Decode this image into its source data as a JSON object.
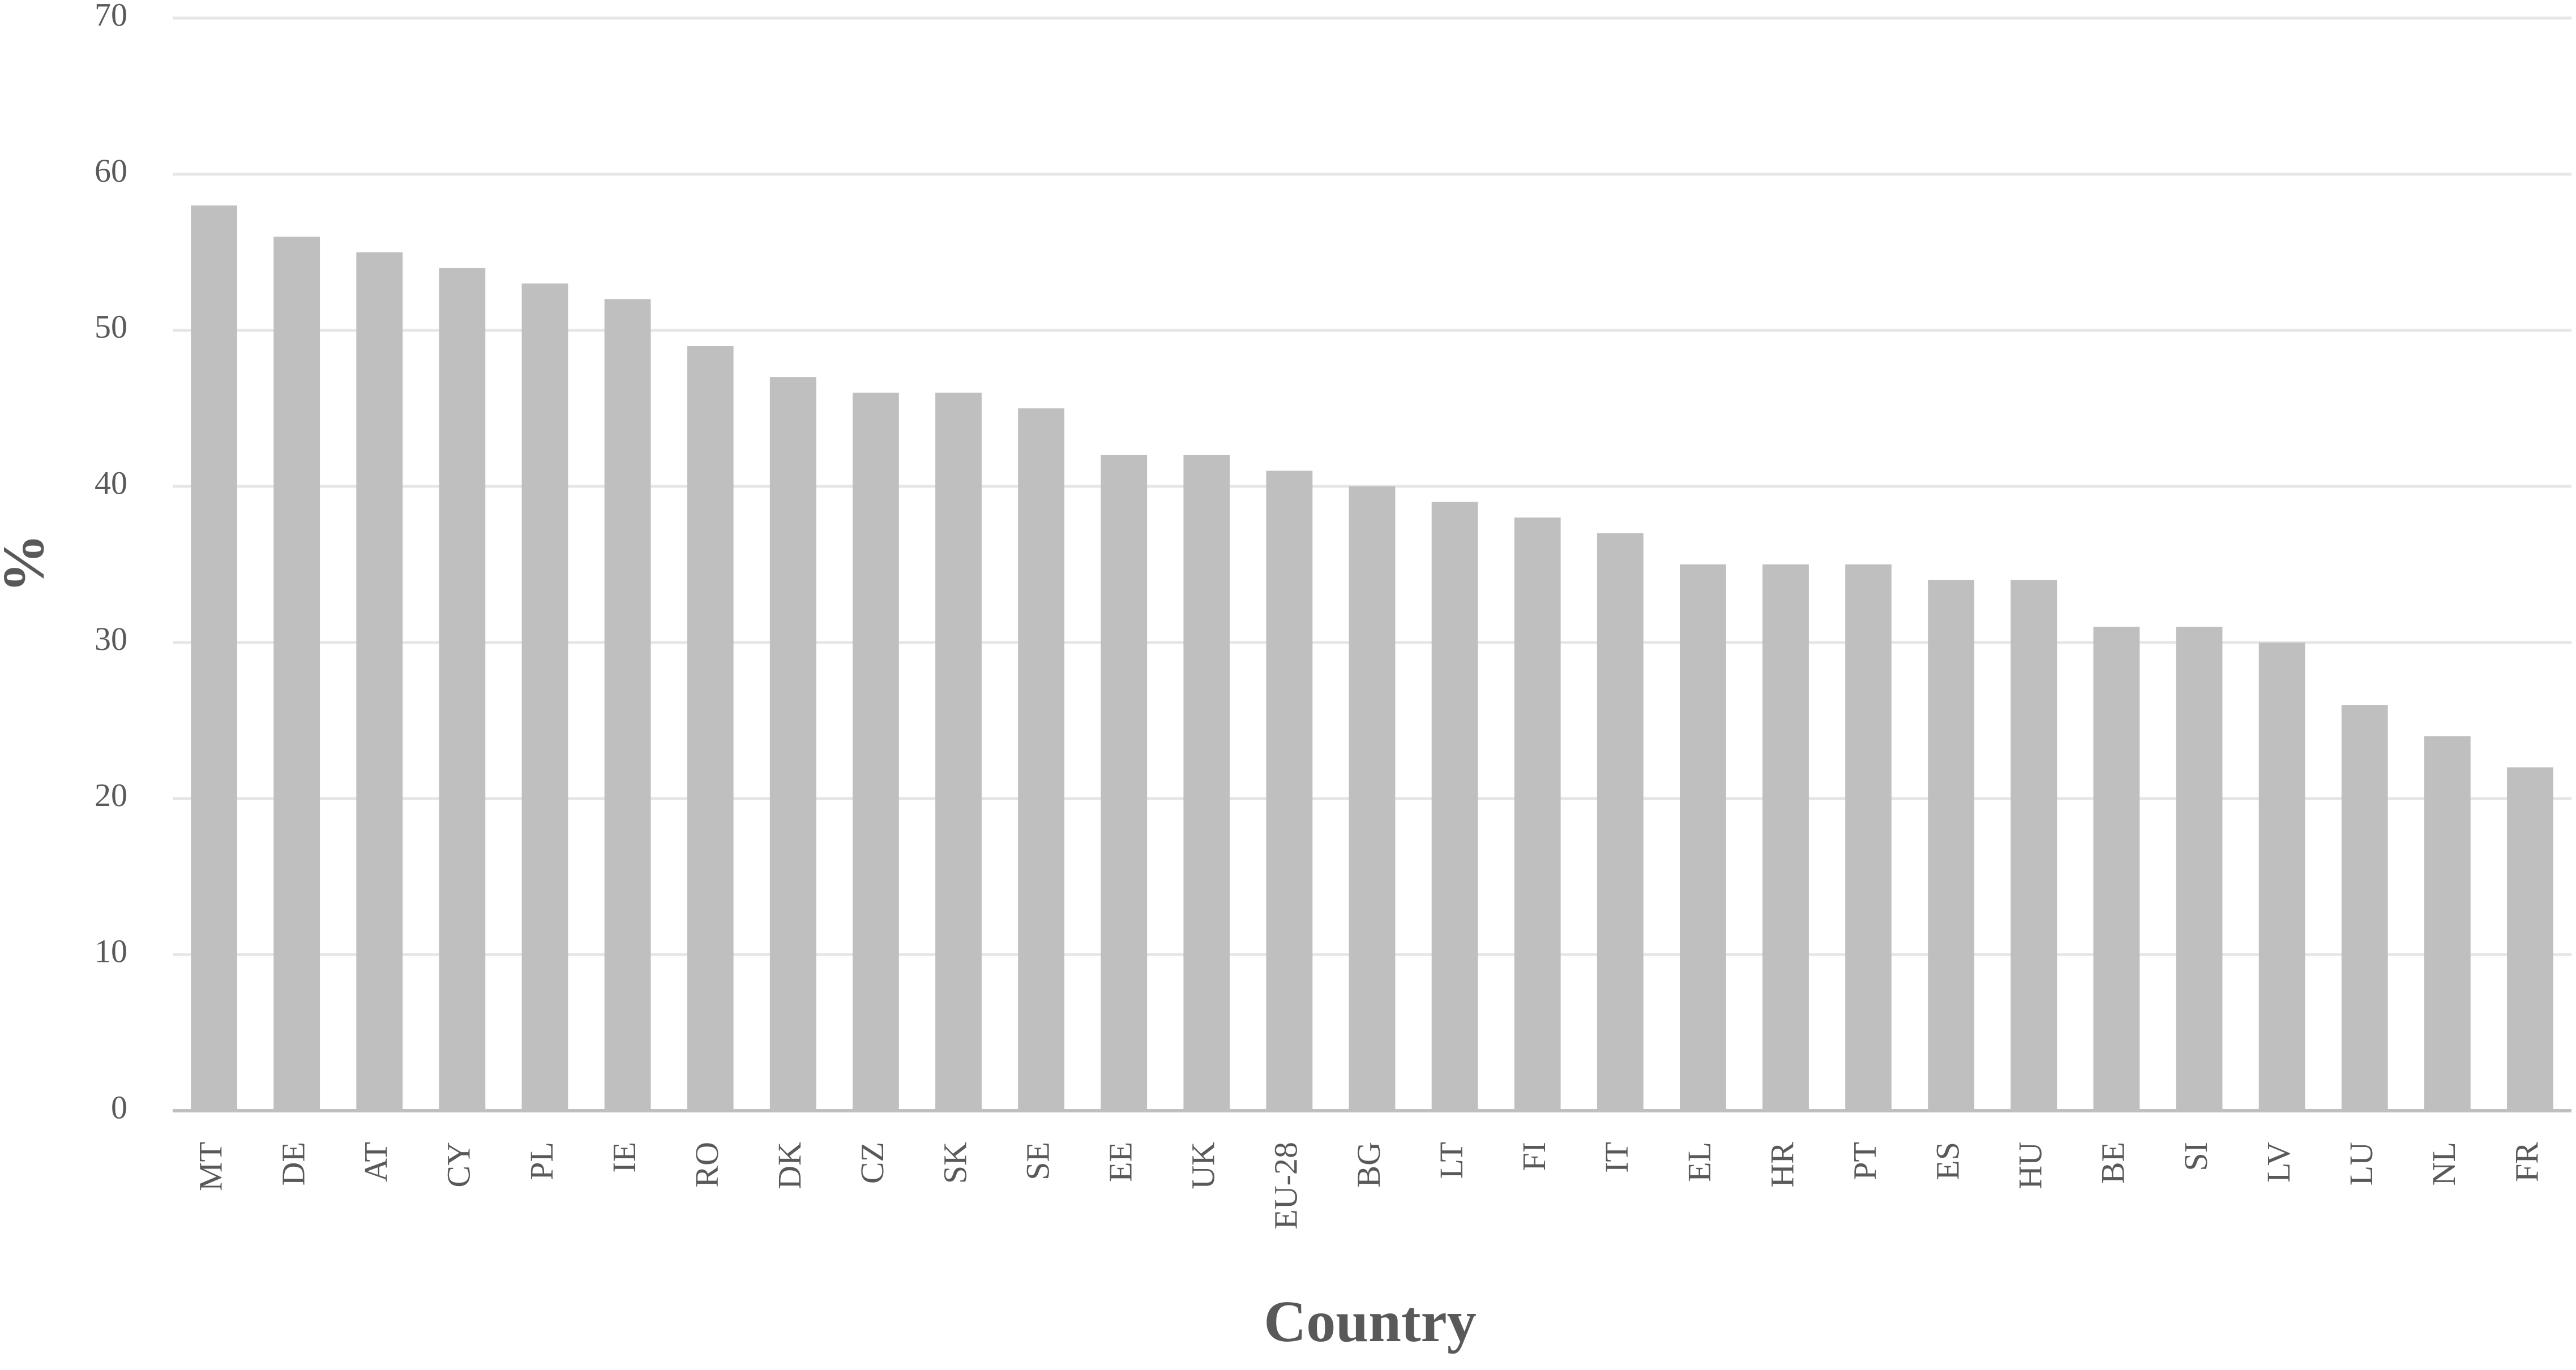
{
  "chart_data": {
    "type": "bar",
    "x_label": "Country",
    "y_label": "%",
    "categories": [
      "MT",
      "DE",
      "AT",
      "CY",
      "PL",
      "IE",
      "RO",
      "DK",
      "CZ",
      "SK",
      "SE",
      "EE",
      "UK",
      "EU-28",
      "BG",
      "LT",
      "FI",
      "IT",
      "EL",
      "HR",
      "PT",
      "ES",
      "HU",
      "BE",
      "SI",
      "LV",
      "LU",
      "NL",
      "FR"
    ],
    "values": [
      58,
      56,
      55,
      54,
      53,
      52,
      49,
      47,
      46,
      46,
      45,
      42,
      42,
      41,
      40,
      39,
      38,
      37,
      35,
      35,
      35,
      34,
      34,
      31,
      31,
      30,
      26,
      24,
      22
    ],
    "color": "#bfbfbf",
    "ylim": [
      0,
      70
    ],
    "yticks": [
      0,
      10,
      20,
      30,
      40,
      50,
      60,
      70
    ],
    "grid": true
  }
}
